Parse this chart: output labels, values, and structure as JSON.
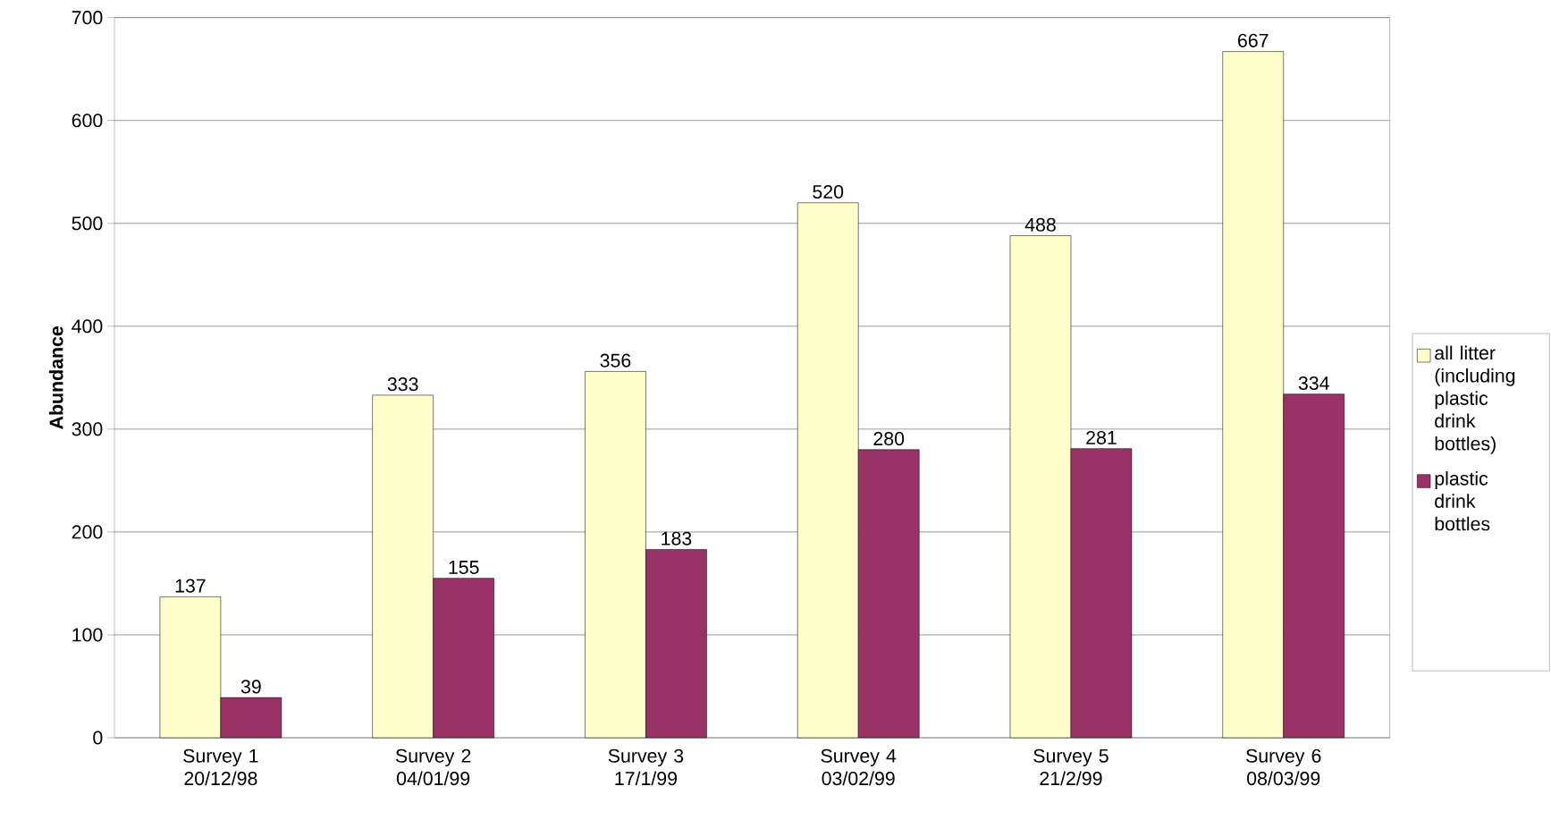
{
  "chart_data": {
    "type": "bar",
    "ylabel": "Abundance",
    "categories": [
      "Survey 1 20/12/98",
      "Survey 2 04/01/99",
      "Survey 3 17/1/99",
      "Survey 4 03/02/99",
      "Survey 5 21/2/99",
      "Survey 6 08/03/99"
    ],
    "series": [
      {
        "name": "all litter (including plastic drink bottles)",
        "color": "#ffffcc",
        "values": [
          137,
          333,
          356,
          520,
          488,
          667
        ]
      },
      {
        "name": "plastic drink bottles",
        "color": "#993366",
        "values": [
          39,
          155,
          183,
          280,
          281,
          334
        ]
      }
    ],
    "ylim": [
      0,
      700
    ],
    "yticks": [
      0,
      100,
      200,
      300,
      400,
      500,
      600,
      700
    ],
    "grid": "y",
    "legend": "right",
    "data_labels": true
  }
}
